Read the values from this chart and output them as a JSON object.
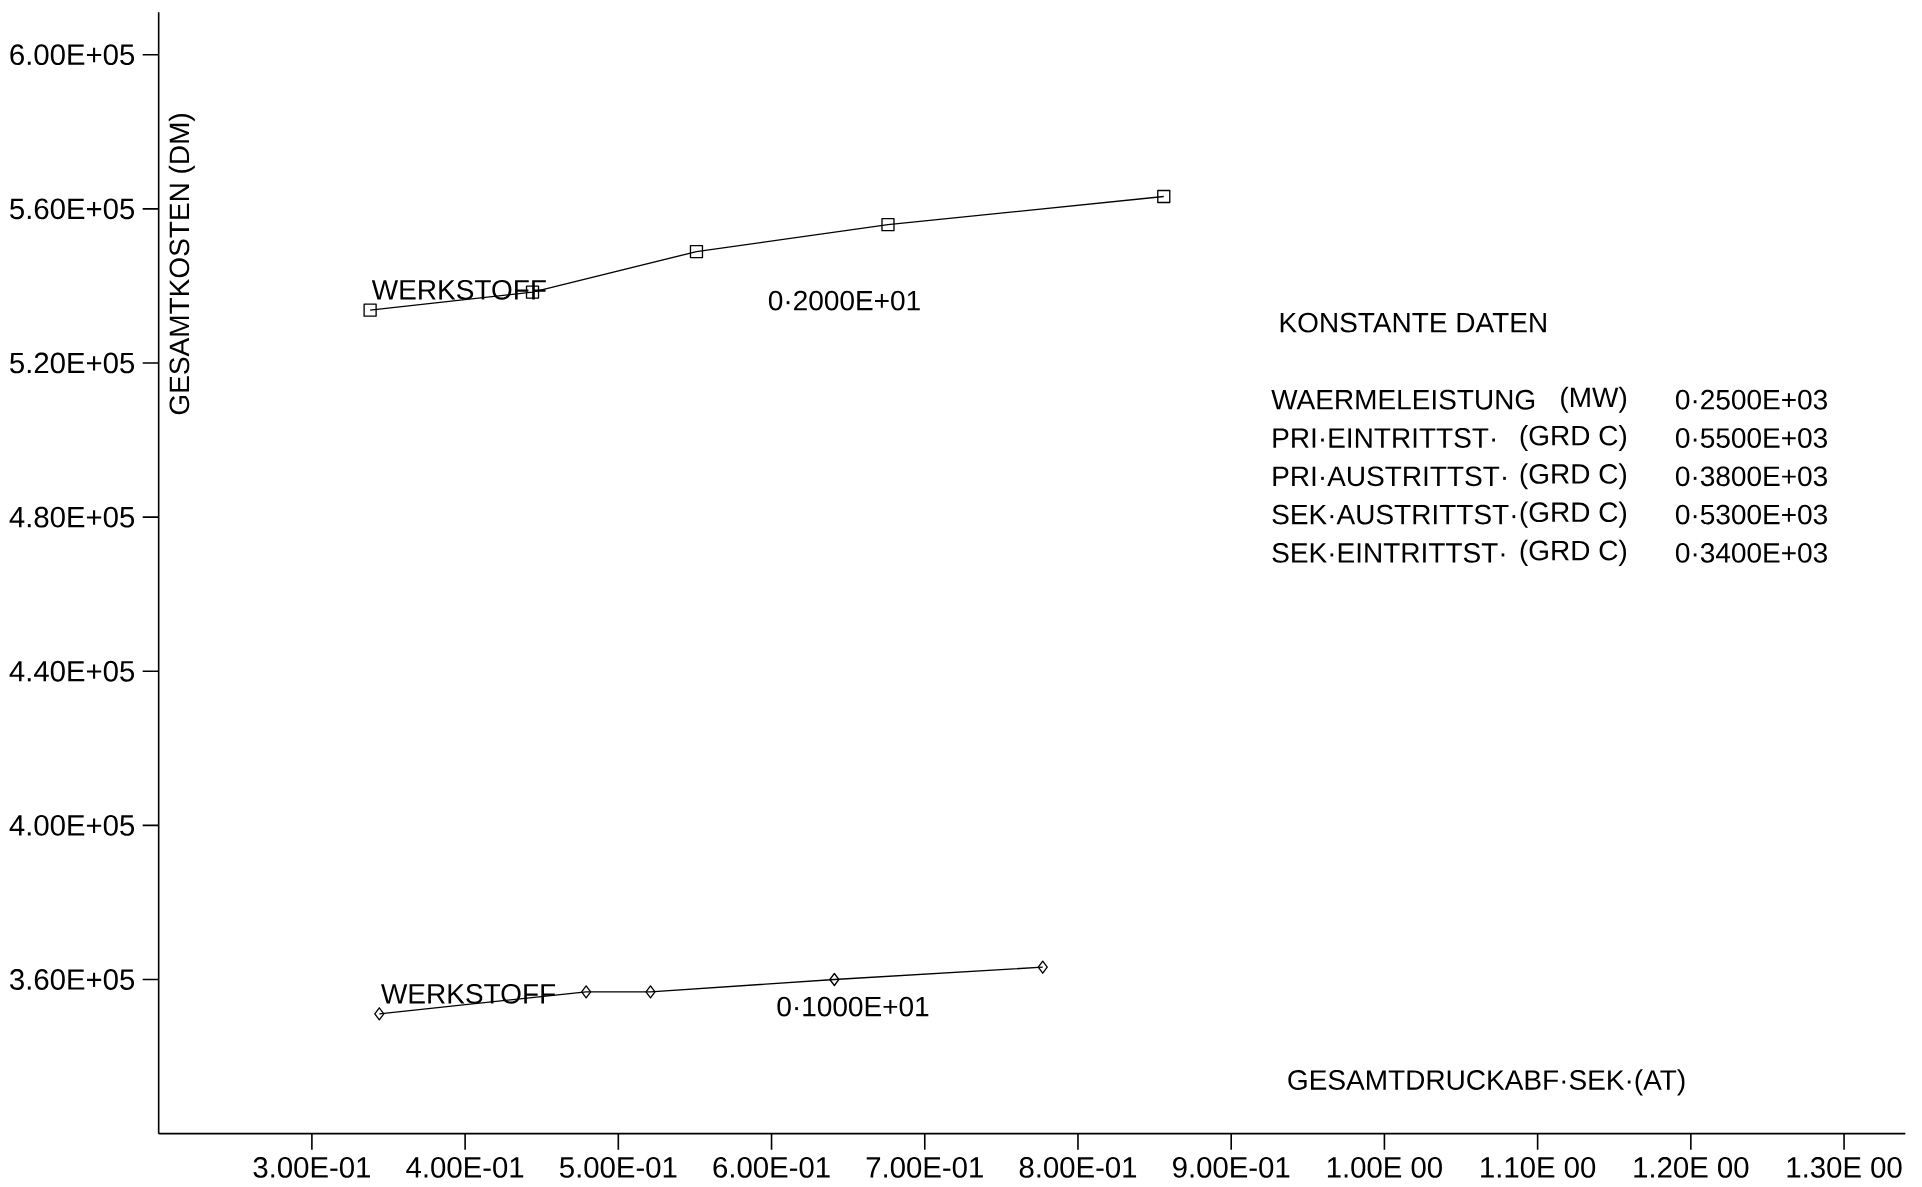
{
  "chart_data": {
    "type": "line",
    "xlabel": "GESAMTDRUCKABF·SEK·(AT)",
    "ylabel": "GESAMTKOSTEN (DM)",
    "xlim": [
      0.2,
      1.34
    ],
    "ylim": [
      320000,
      611000
    ],
    "xticks": [
      {
        "value": 0.3,
        "label": "3.00E-01"
      },
      {
        "value": 0.4,
        "label": "4.00E-01"
      },
      {
        "value": 0.5,
        "label": "5.00E-01"
      },
      {
        "value": 0.6,
        "label": "6.00E-01"
      },
      {
        "value": 0.7,
        "label": "7.00E-01"
      },
      {
        "value": 0.8,
        "label": "8.00E-01"
      },
      {
        "value": 0.9,
        "label": "9.00E-01"
      },
      {
        "value": 1.0,
        "label": "1.00E 00"
      },
      {
        "value": 1.1,
        "label": "1.10E 00"
      },
      {
        "value": 1.2,
        "label": "1.20E 00"
      },
      {
        "value": 1.3,
        "label": "1.30E 00"
      }
    ],
    "yticks": [
      {
        "value": 360000,
        "label": "3.60E+05"
      },
      {
        "value": 400000,
        "label": "4.00E+05"
      },
      {
        "value": 440000,
        "label": "4.40E+05"
      },
      {
        "value": 480000,
        "label": "4.80E+05"
      },
      {
        "value": 520000,
        "label": "5.20E+05"
      },
      {
        "value": 560000,
        "label": "5.60E+05"
      },
      {
        "value": 600000,
        "label": "6.00E+05"
      }
    ],
    "series": [
      {
        "name": "0·2000E+01",
        "color": "#000000",
        "marker": "square",
        "x": [
          0.338,
          0.444,
          0.551,
          0.676,
          0.856
        ],
        "values": [
          533700,
          538400,
          548900,
          555900,
          563200
        ]
      },
      {
        "name": "0·1000E+01",
        "color": "#000000",
        "marker": "diamond",
        "x": [
          0.344,
          0.479,
          0.521,
          0.641,
          0.777
        ],
        "values": [
          351100,
          356800,
          356800,
          360000,
          363200
        ]
      }
    ],
    "annotations": [
      {
        "text": "WERKSTOFF",
        "x": 0.338,
        "y": 536000
      },
      {
        "text": "WERKSTOFF",
        "x": 0.344,
        "y": 353300
      },
      "KONSTANTE DATEN",
      "WAERMELEISTUNG",
      "(MW)",
      "0·2500E+03",
      "PRI·EINTRITTST·",
      "(GRD C)",
      "0·5500E+03",
      "PRI·AUSTRITTST·",
      "(GRD C)",
      "0·3800E+03",
      "SEK·AUSTRITTST·",
      "(GRD C)",
      "0·5300E+03",
      "SEK·EINTRITTST·",
      "(GRD C)",
      "0·3400E+03"
    ]
  }
}
